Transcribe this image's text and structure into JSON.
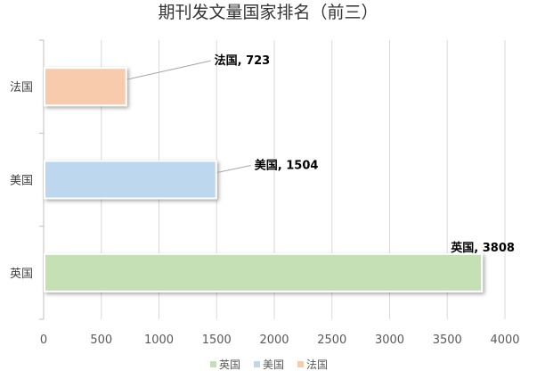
{
  "chart_data": {
    "type": "bar",
    "orientation": "horizontal",
    "title": "期刊发文量国家排名（前三）",
    "categories": [
      "英国",
      "美国",
      "法国"
    ],
    "values": [
      3808,
      1504,
      723
    ],
    "xlim": [
      0,
      4000
    ],
    "xticks": [
      0,
      500,
      1000,
      1500,
      2000,
      2500,
      3000,
      3500,
      4000
    ],
    "grid": "vertical",
    "legend": "bottom",
    "colors": [
      "#c5e0b4",
      "#bdd7ee",
      "#f8cbad"
    ],
    "data_labels": [
      "英国, 3808",
      "美国, 1504",
      "法国, 723"
    ]
  }
}
